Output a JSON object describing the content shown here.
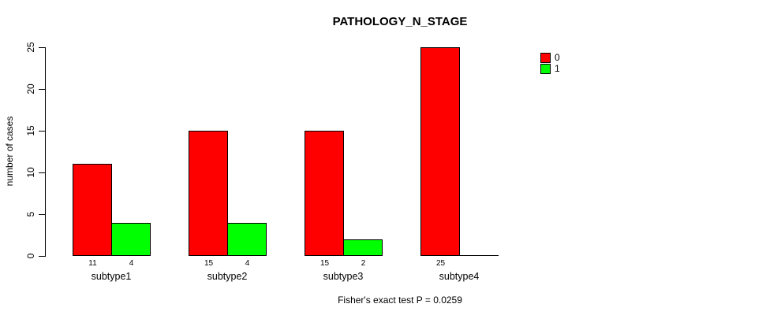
{
  "title": "PATHOLOGY_N_STAGE",
  "chart_data": {
    "type": "bar",
    "title": "PATHOLOGY_N_STAGE",
    "categories": [
      "subtype1",
      "subtype2",
      "subtype3",
      "subtype4"
    ],
    "series": [
      {
        "name": "0",
        "color": "#ff0000",
        "values": [
          11,
          15,
          15,
          25
        ]
      },
      {
        "name": "1",
        "color": "#00ff00",
        "values": [
          4,
          4,
          2,
          0
        ]
      }
    ],
    "xlabel": "",
    "ylabel": "number of cases",
    "ylim": [
      0,
      25
    ],
    "yticks": [
      0,
      5,
      10,
      15,
      20,
      25
    ],
    "bar_value_labels": [
      [
        "11",
        "15",
        "15",
        "25"
      ],
      [
        "4",
        "4",
        "2",
        ""
      ]
    ],
    "legend_position": "right",
    "grid": false,
    "footnote": "Fisher's exact test P = 0.0259"
  }
}
